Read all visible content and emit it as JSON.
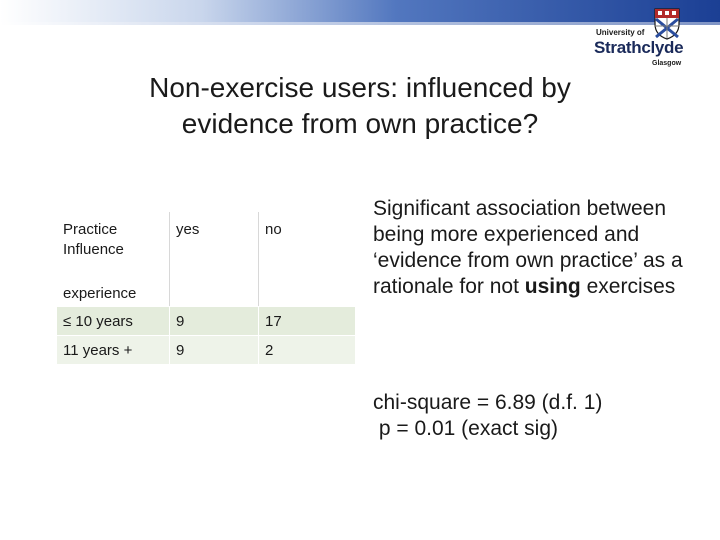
{
  "logo": {
    "university_of": "University of",
    "name": "Strathclyde",
    "city": "Glasgow"
  },
  "title_line1": "Non-exercise users:  influenced by",
  "title_line2": "evidence from own practice?",
  "table": {
    "header": {
      "row_label_top": "Practice Influence",
      "row_label_bottom": "experience",
      "col_yes": "yes",
      "col_no": "no"
    },
    "rows": [
      {
        "label": "≤ 10 years",
        "yes": "9",
        "no": "17"
      },
      {
        "label": "11 years +",
        "yes": "9",
        "no": "2"
      }
    ]
  },
  "finding": {
    "prefix": "Significant association between being more experienced and ‘evidence from own practice’ as a rationale for not ",
    "bold": "using",
    "suffix": " exercises"
  },
  "stats": {
    "line1": "chi-square = 6.89 (d.f. 1)",
    "line2": " p = 0.01 (exact sig)"
  },
  "colors": {
    "top_bar": "#1b3f94",
    "table_row_shade": "#e4ecdc"
  }
}
